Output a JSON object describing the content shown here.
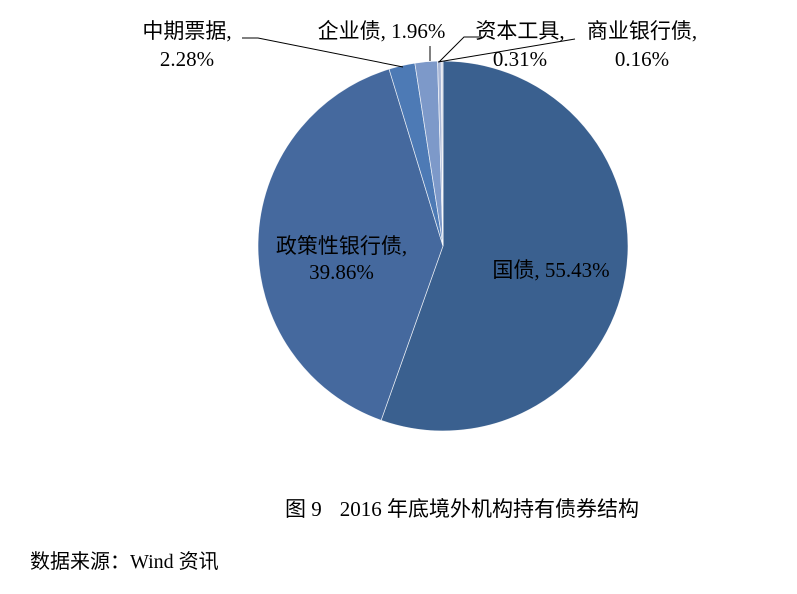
{
  "chart_data": {
    "type": "pie",
    "title": "图 9  2016 年底境外机构持有债券结构",
    "legend": "none",
    "start_angle_deg": 0,
    "direction": "clockwise",
    "label_style": "category name + percent, leader lines for small slices",
    "slices": [
      {
        "id": "guozhai",
        "label": "国债",
        "value": 55.43,
        "color": "#3a608f"
      },
      {
        "id": "zhengcexing",
        "label": "政策性银行债",
        "value": 39.86,
        "color": "#45699e"
      },
      {
        "id": "zhongqipiaoju",
        "label": "中期票据",
        "value": 2.28,
        "color": "#4d7ab5"
      },
      {
        "id": "qiyezhai",
        "label": "企业债",
        "value": 1.96,
        "color": "#7d99c9"
      },
      {
        "id": "ziben",
        "label": "资本工具",
        "value": 0.31,
        "color": "#a9b7d6"
      },
      {
        "id": "shangye",
        "label": "商业银行债",
        "value": 0.16,
        "color": "#cfd5e3"
      }
    ]
  },
  "slice_labels": {
    "guozhai": "国债, 55.43%",
    "zhengce_line1": "政策性银行债,",
    "zhengce_line2": "39.86%",
    "zhongqi_line1": "中期票据,",
    "zhongqi_line2": "2.28%",
    "qiye": "企业债, 1.96%",
    "ziben_line1": "资本工具,",
    "ziben_line2": "0.31%",
    "shangye_line1": "商业银行债,",
    "shangye_line2": "0.16%"
  },
  "caption": {
    "figure_number": "图 9",
    "figure_title": "2016 年底境外机构持有债券结构",
    "source": "数据来源：Wind 资讯"
  }
}
